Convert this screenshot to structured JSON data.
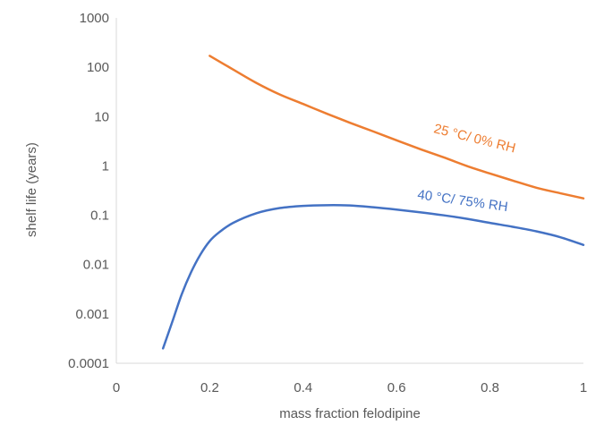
{
  "chart_data": {
    "type": "line",
    "title": "",
    "xlabel": "mass fraction felodipine",
    "ylabel": "shelf life (years)",
    "xlim": [
      0,
      1
    ],
    "ylim": [
      0.0001,
      1000
    ],
    "yscale": "log",
    "grid": false,
    "x_ticks": [
      "0",
      "0.2",
      "0.4",
      "0.6",
      "0.8",
      "1"
    ],
    "y_ticks": [
      "1000",
      "100",
      "10",
      "1",
      "0.1",
      "0.01",
      "0.001",
      "0.0001"
    ],
    "series": [
      {
        "name": "25 °C/ 0% RH",
        "color": "#ED7D31",
        "x": [
          0.2,
          0.25,
          0.3,
          0.35,
          0.4,
          0.45,
          0.5,
          0.55,
          0.6,
          0.65,
          0.7,
          0.75,
          0.8,
          0.85,
          0.9,
          0.95,
          1.0
        ],
        "y": [
          170,
          90,
          48,
          28,
          18,
          11.5,
          7.5,
          5,
          3.3,
          2.2,
          1.5,
          1.0,
          0.7,
          0.5,
          0.36,
          0.28,
          0.22
        ]
      },
      {
        "name": "40 °C/ 75% RH",
        "color": "#4472C4",
        "x": [
          0.1,
          0.12,
          0.14,
          0.16,
          0.18,
          0.2,
          0.22,
          0.25,
          0.3,
          0.35,
          0.4,
          0.45,
          0.5,
          0.55,
          0.6,
          0.65,
          0.7,
          0.75,
          0.8,
          0.85,
          0.9,
          0.95,
          1.0
        ],
        "y": [
          0.0002,
          0.0007,
          0.0025,
          0.007,
          0.016,
          0.03,
          0.045,
          0.07,
          0.11,
          0.14,
          0.155,
          0.16,
          0.158,
          0.145,
          0.13,
          0.115,
          0.1,
          0.085,
          0.07,
          0.058,
          0.047,
          0.036,
          0.025
        ]
      }
    ]
  }
}
